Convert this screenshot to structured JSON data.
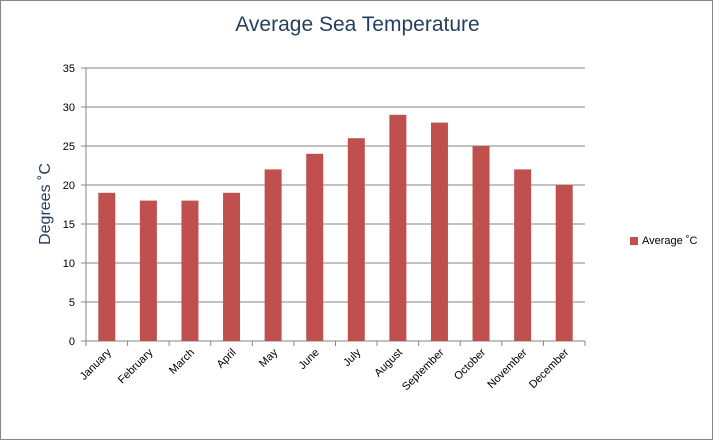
{
  "chart_data": {
    "type": "bar",
    "title": "Average Sea Temperature",
    "xlabel": "",
    "ylabel": "Degrees ˚C",
    "ylim": [
      0,
      35
    ],
    "yticks": [
      0,
      5,
      10,
      15,
      20,
      25,
      30,
      35
    ],
    "grid": true,
    "legend_position": "right",
    "categories": [
      "January",
      "February",
      "March",
      "April",
      "May",
      "June",
      "July",
      "August",
      "September",
      "October",
      "November",
      "December"
    ],
    "series": [
      {
        "name": "Average ˚C",
        "color": "#c0504d",
        "values": [
          19,
          18,
          18,
          19,
          22,
          24,
          26,
          29,
          28,
          25,
          22,
          20
        ]
      }
    ]
  }
}
